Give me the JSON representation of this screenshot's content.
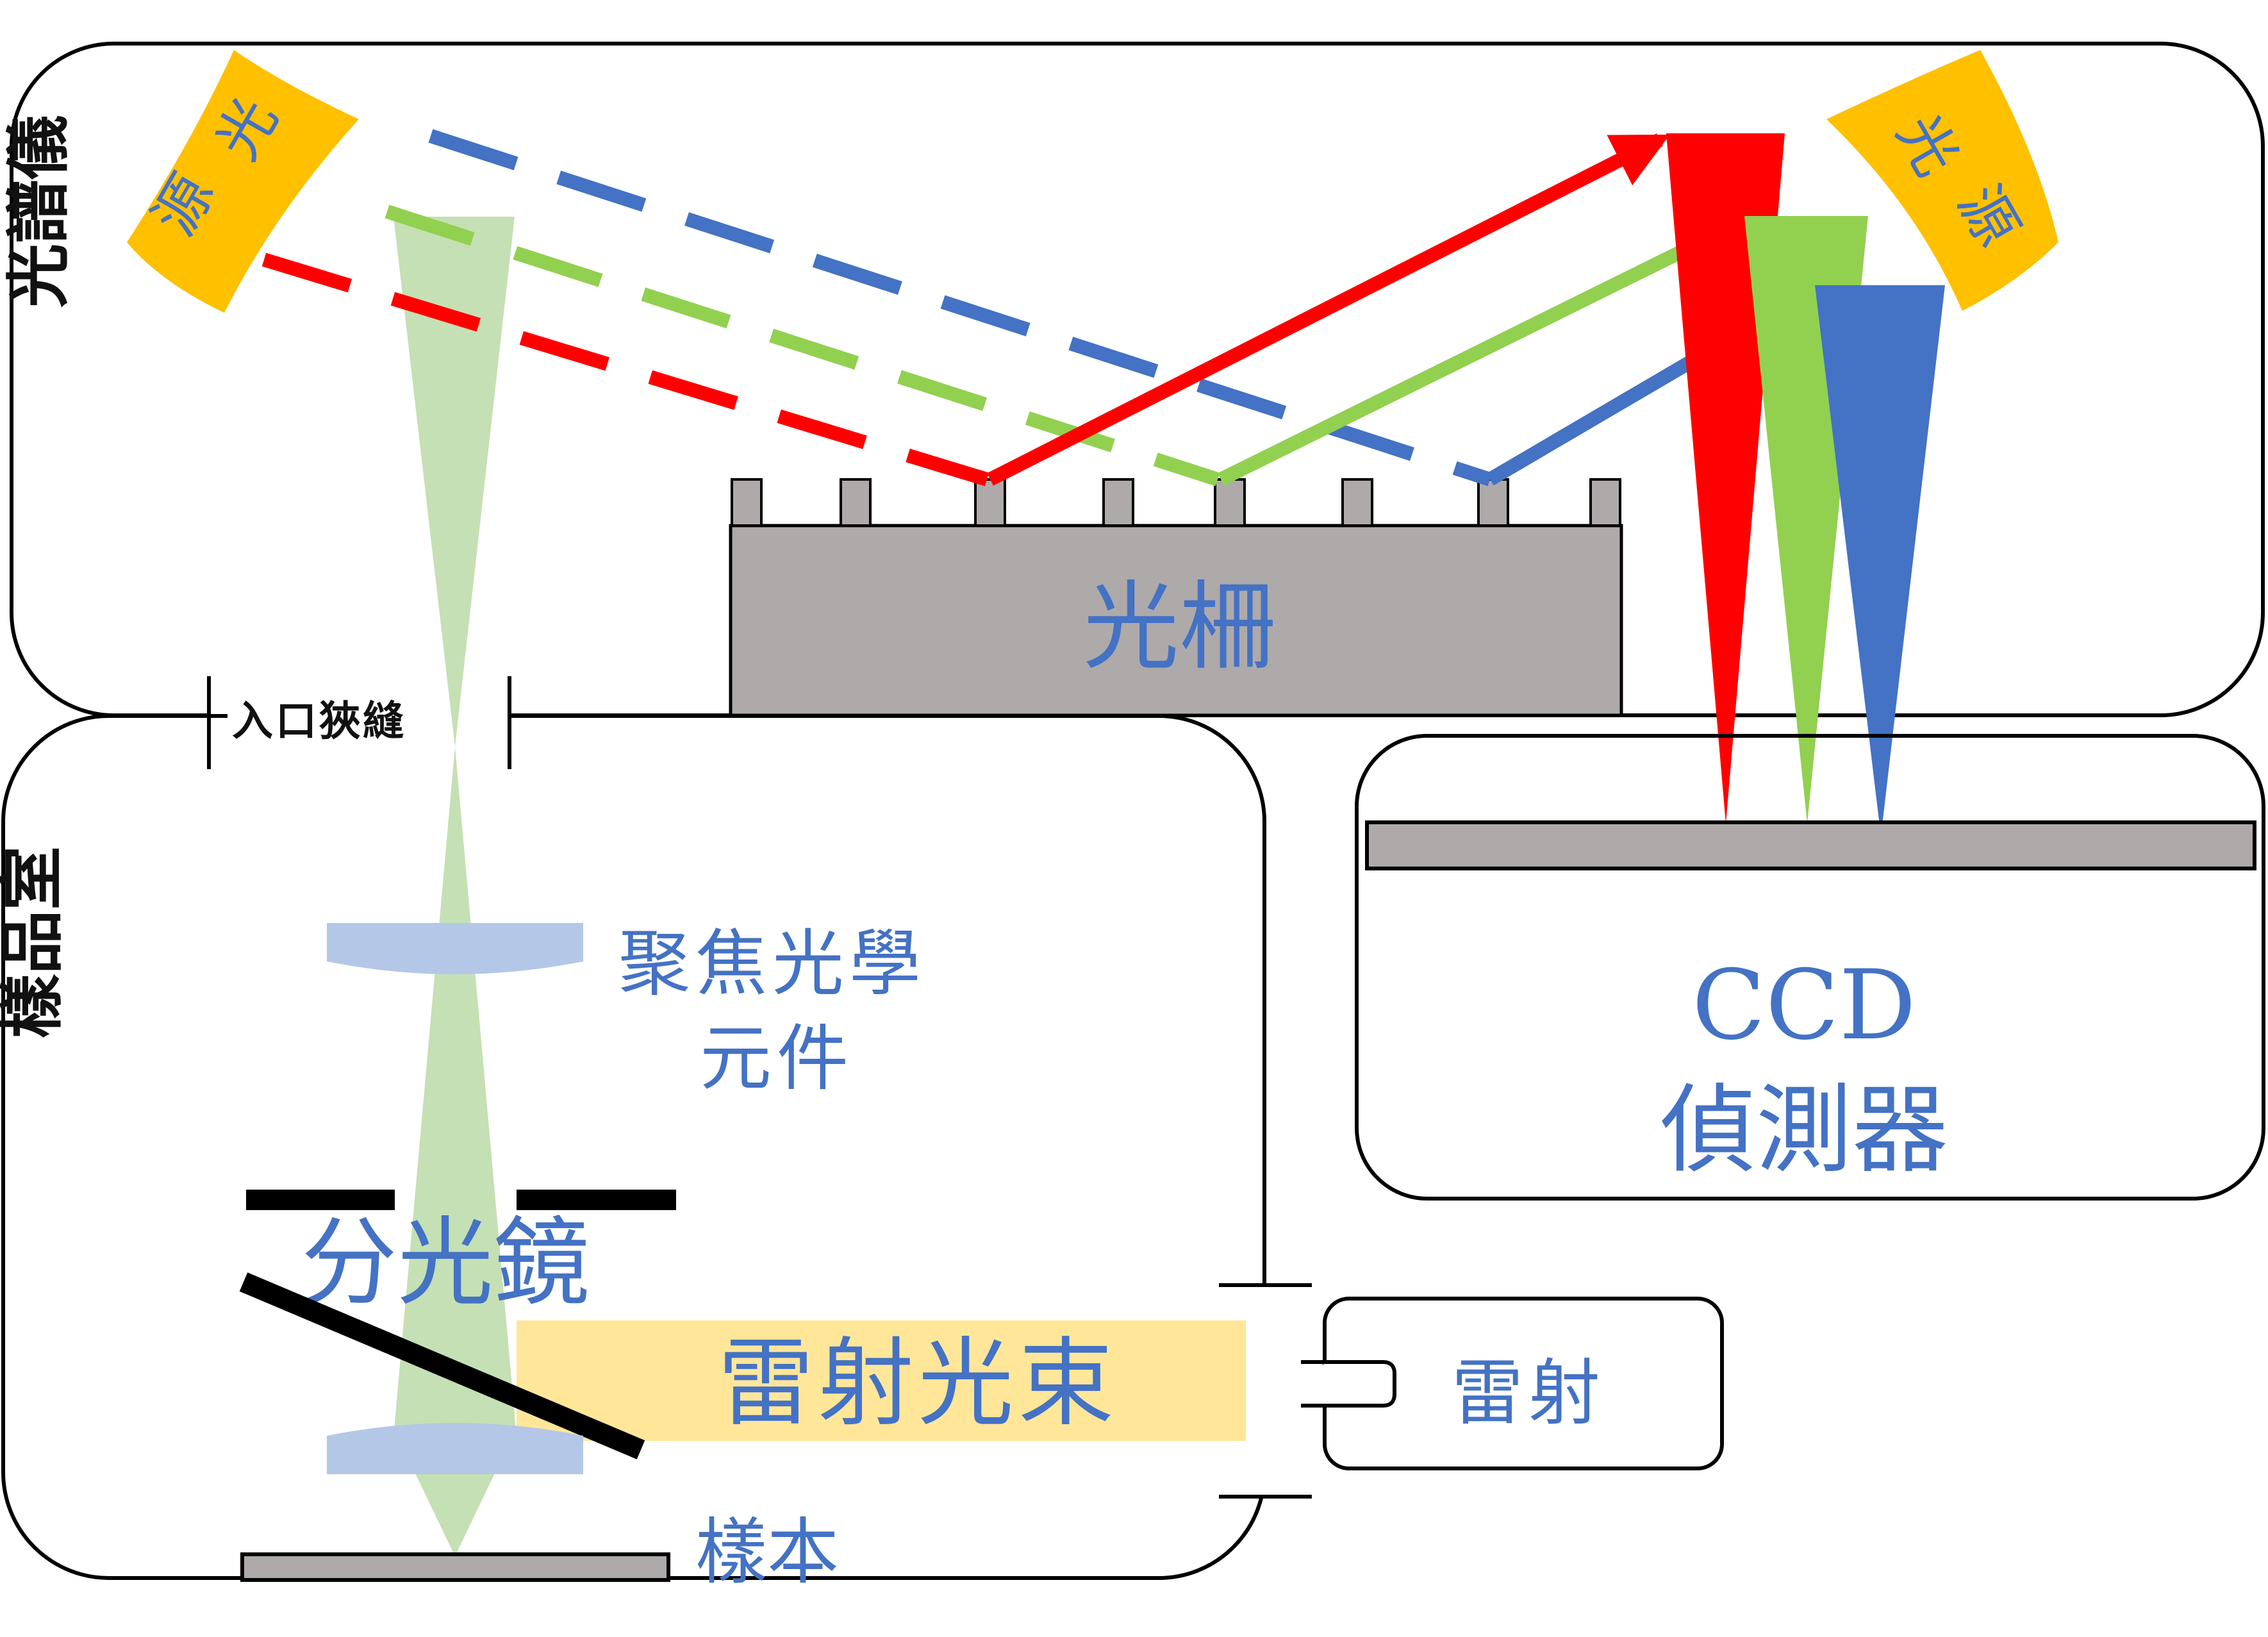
{
  "labels": {
    "spectrometer": "光譜儀",
    "sample_chamber": "樣品室",
    "entrance_slit": "入口狹縫",
    "grating": "光柵",
    "focusing_optics_line1": "聚焦光學",
    "focusing_optics_line2": "元件",
    "beam_splitter": "分光鏡",
    "laser_beam": "雷射光束",
    "laser": "雷射",
    "sample": "樣本",
    "ccd_line1": "CCD",
    "ccd_line2": "偵測器",
    "light_source_left_1": "光",
    "light_source_left_2": "源",
    "light_source_right_1": "光",
    "light_source_right_2": "源"
  },
  "colors": {
    "text_blue": "#4472C4",
    "red": "#FF0000",
    "green": "#92D050",
    "blue": "#4472C4",
    "source_yellow": "#FFC000",
    "grating_gray": "#AEAAAA",
    "light_green": "#C5E0B4",
    "lens_blue": "#B4C7E7",
    "laser_yellow": "#FFE699"
  }
}
